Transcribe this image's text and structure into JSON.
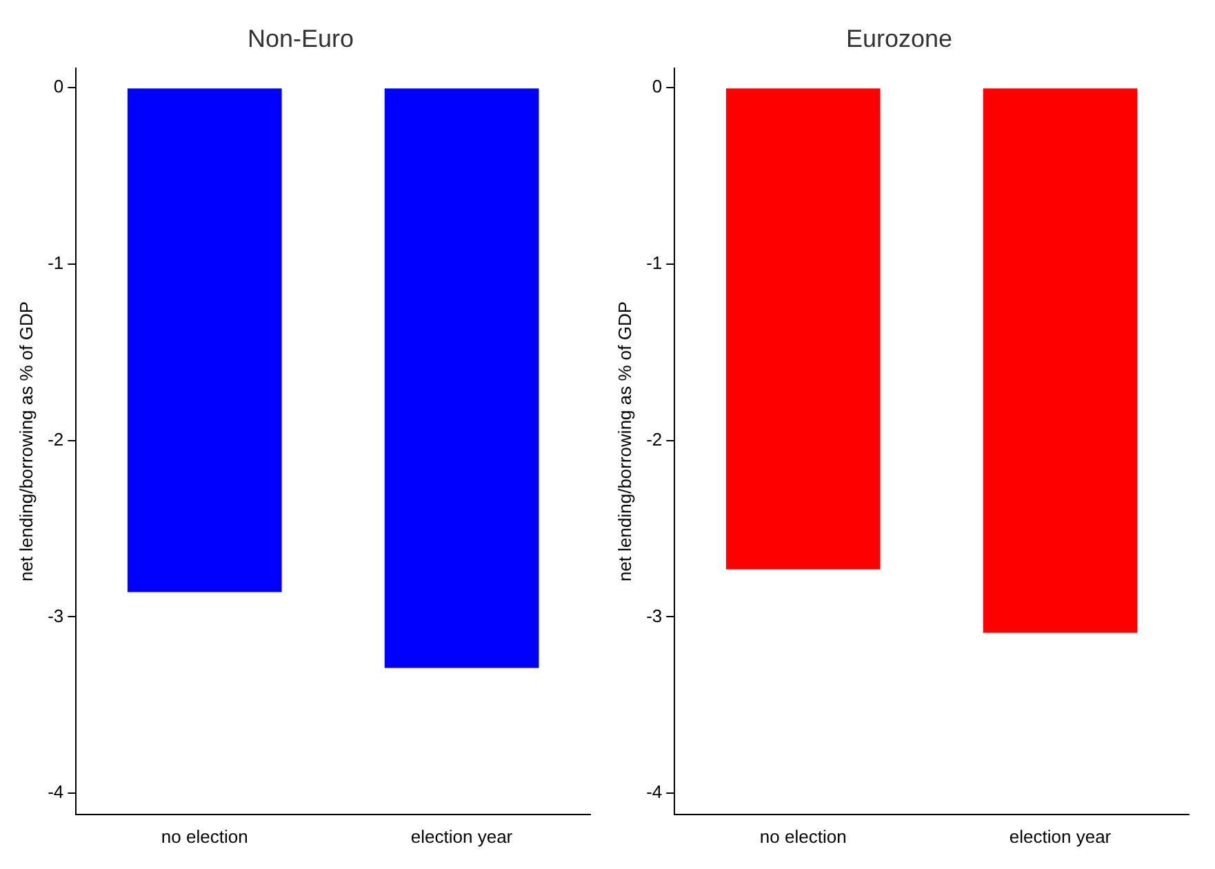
{
  "chart_data": [
    {
      "type": "bar",
      "title": "Non-Euro",
      "ylabel": "net lending/borrowing as % of GDP",
      "categories": [
        "no election",
        "election year"
      ],
      "values": [
        -2.86,
        -3.29
      ],
      "color": "#0000ff",
      "ylim": [
        -4.12,
        0.11
      ],
      "yticks": [
        0,
        -1,
        -2,
        -3,
        -4
      ],
      "grid": false,
      "legend": false
    },
    {
      "type": "bar",
      "title": "Eurozone",
      "ylabel": "net lending/borrowing as % of GDP",
      "categories": [
        "no election",
        "election year"
      ],
      "values": [
        -2.73,
        -3.09
      ],
      "color": "#ff0000",
      "ylim": [
        -4.12,
        0.11
      ],
      "yticks": [
        0,
        -1,
        -2,
        -3,
        -4
      ],
      "grid": false,
      "legend": false
    }
  ]
}
